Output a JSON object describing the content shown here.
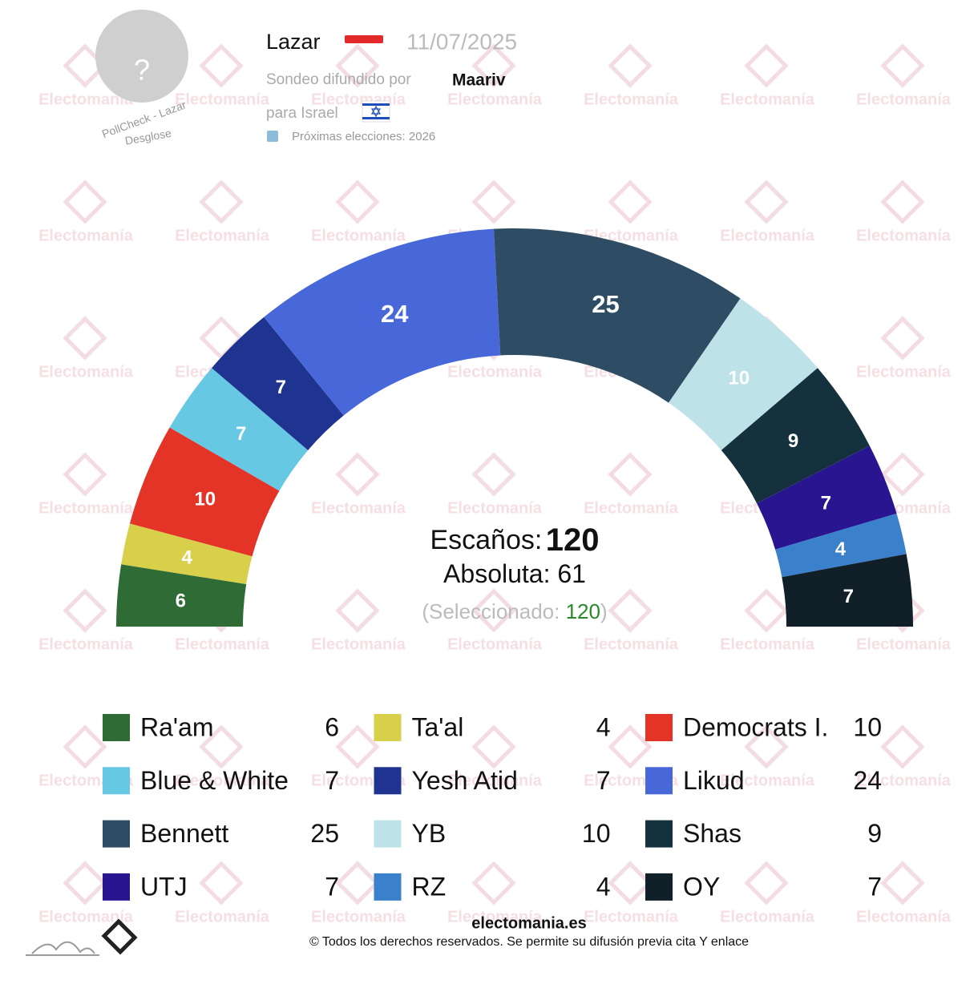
{
  "header": {
    "pollster": "Lazar",
    "date": "11/07/2025",
    "spread_by": "Sondeo difundido por",
    "media": "Maariv",
    "for_country": "para Israel",
    "next_elections": "Próximas elecciones: 2026",
    "avatar": "?",
    "pollcheck": "PollCheck - Lazar",
    "breakdown": "Desglose"
  },
  "watermark": "Electomanía",
  "chart_data": {
    "type": "hemicycle",
    "series": [
      {
        "name": "Ra'am",
        "color": "#2f6b34",
        "values": [
          6
        ]
      },
      {
        "name": "Ta'al",
        "color": "#d8cf4a",
        "values": [
          4
        ]
      },
      {
        "name": "Democrats I.",
        "color": "#e43327",
        "values": [
          10
        ]
      },
      {
        "name": "Blue & White",
        "color": "#67c8e3",
        "values": [
          7
        ]
      },
      {
        "name": "Yesh Atid",
        "color": "#1f3391",
        "values": [
          7
        ]
      },
      {
        "name": "Likud",
        "color": "#4868da",
        "values": [
          24
        ]
      },
      {
        "name": "Bennett",
        "color": "#2e4d64",
        "values": [
          25
        ]
      },
      {
        "name": "YB",
        "color": "#bde2e8",
        "values": [
          10
        ]
      },
      {
        "name": "Shas",
        "color": "#14313d",
        "values": [
          9
        ]
      },
      {
        "name": "UTJ",
        "color": "#2a1590",
        "values": [
          7
        ]
      },
      {
        "name": "RZ",
        "color": "#3a80cb",
        "values": [
          4
        ]
      },
      {
        "name": "OY",
        "color": "#111f28",
        "values": [
          7
        ]
      }
    ],
    "seats_label": "Escaños:",
    "total_seats": 120,
    "majority_label": "Absoluta:",
    "majority": 61,
    "selected_label": "(Seleccionado:",
    "selected": 120,
    "selected_close": ")"
  },
  "footer": {
    "site": "electomania.es",
    "copyright": "© Todos los derechos reservados. Se permite su difusión previa cita Y enlace"
  }
}
